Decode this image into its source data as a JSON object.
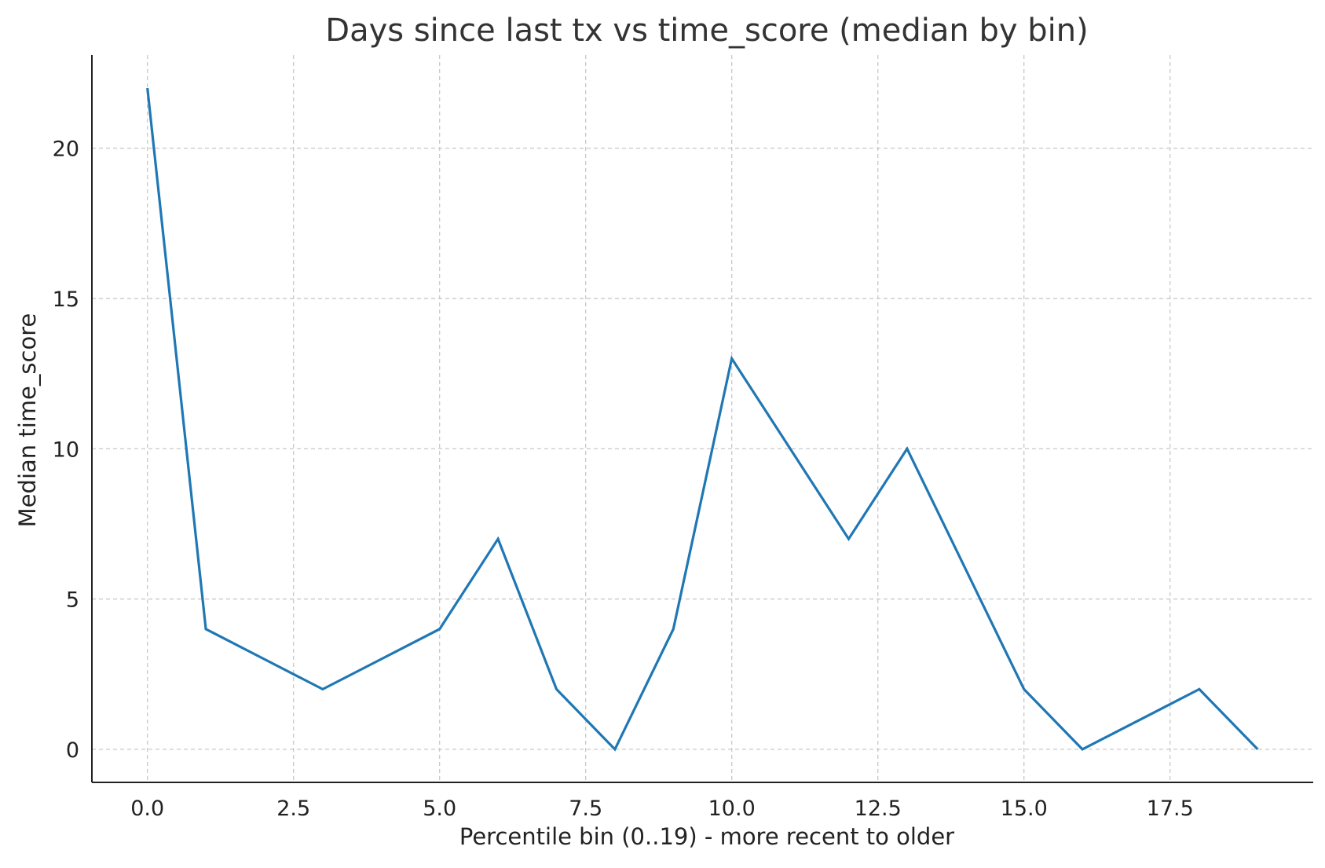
{
  "chart_data": {
    "type": "line",
    "title": "Days since last tx vs time_score (median by bin)",
    "xlabel": "Percentile bin (0..19) - more recent to older",
    "ylabel": "Median time_score",
    "xlim": [
      -0.95,
      19.95
    ],
    "ylim": [
      -1.1,
      23.1
    ],
    "xticks": [
      0,
      2.5,
      5,
      7.5,
      10,
      12.5,
      15,
      17.5
    ],
    "xtick_labels": [
      "0.0",
      "2.5",
      "5.0",
      "7.5",
      "10.0",
      "12.5",
      "15.0",
      "17.5"
    ],
    "yticks": [
      0,
      5,
      10,
      15,
      20
    ],
    "ytick_labels": [
      "0",
      "5",
      "10",
      "15",
      "20"
    ],
    "grid": true,
    "line_color": "#1f77b4",
    "series": [
      {
        "x": [
          0,
          1,
          2,
          3,
          4,
          5,
          6,
          7,
          8,
          9,
          10,
          11,
          12,
          13,
          14,
          15,
          16,
          17,
          18,
          19
        ],
        "values": [
          22,
          4,
          3,
          2,
          3,
          4,
          7,
          2,
          0,
          4,
          13,
          10,
          7,
          10,
          6,
          2,
          0,
          1,
          2,
          0
        ]
      }
    ]
  }
}
